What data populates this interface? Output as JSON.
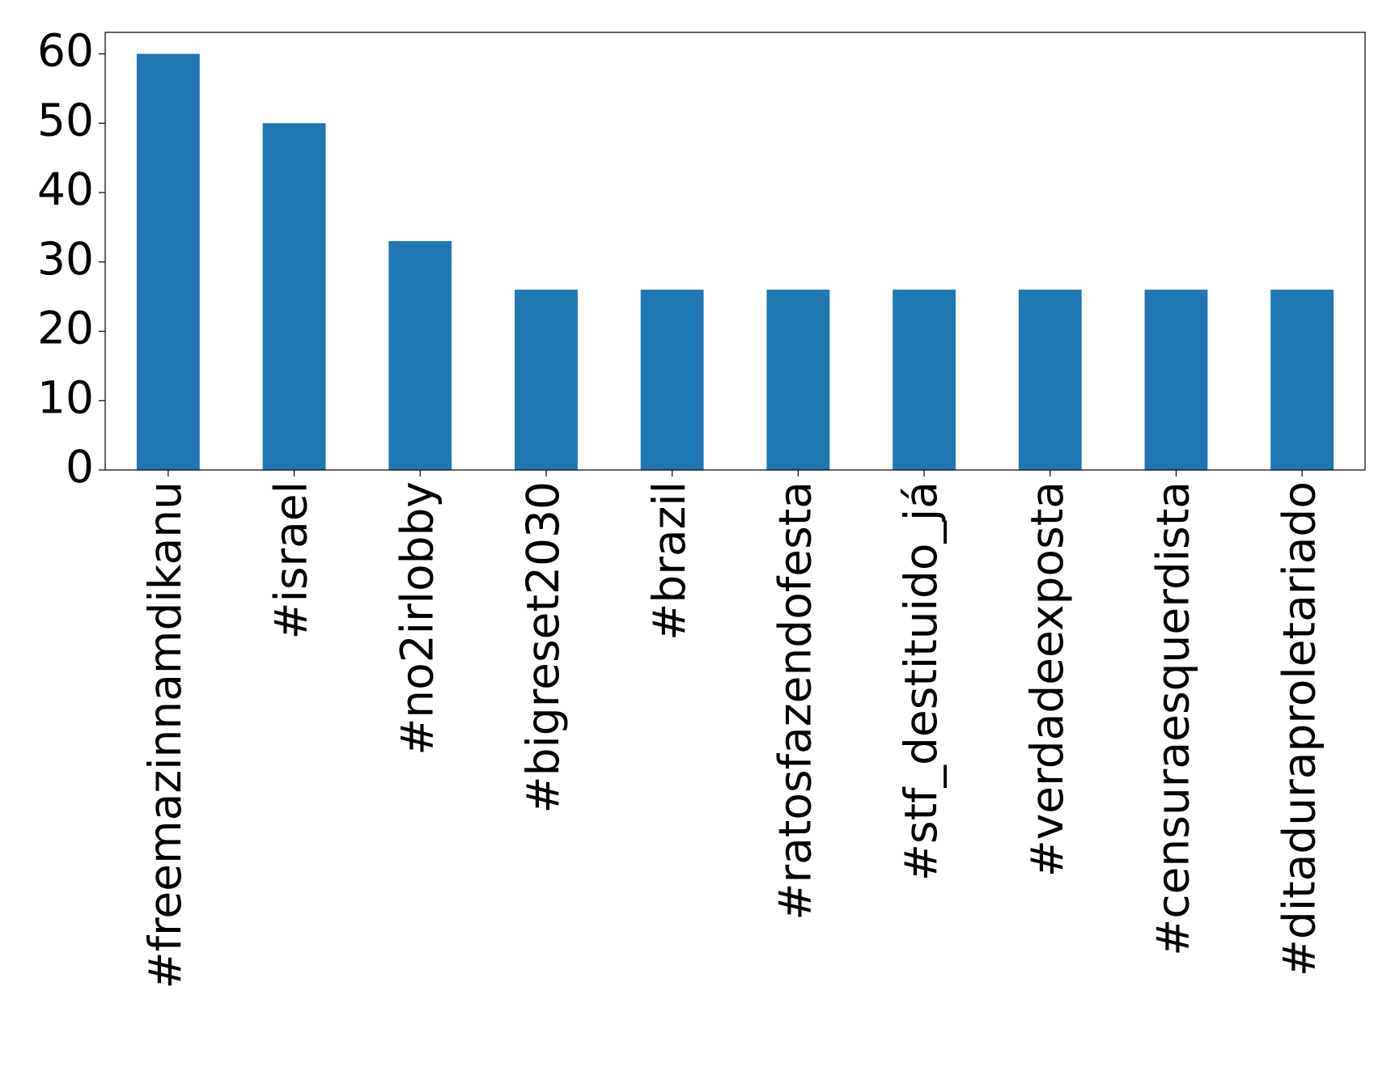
{
  "chart_data": {
    "type": "bar",
    "categories": [
      "#freemazinnamdikanu",
      "#israel",
      "#no2irlobby",
      "#bigreset2030",
      "#brazil",
      "#ratosfazendofesta",
      "#stf_destituido_já",
      "#verdadeexposta",
      "#censuraesquerdista",
      "#ditaduraproletariado"
    ],
    "values": [
      60,
      50,
      33,
      26,
      26,
      26,
      26,
      26,
      26,
      26
    ],
    "color": "#1f77b4",
    "ylim": [
      0,
      63.1
    ],
    "yticks": [
      0,
      10,
      20,
      30,
      40,
      50,
      60
    ],
    "grid": false
  }
}
